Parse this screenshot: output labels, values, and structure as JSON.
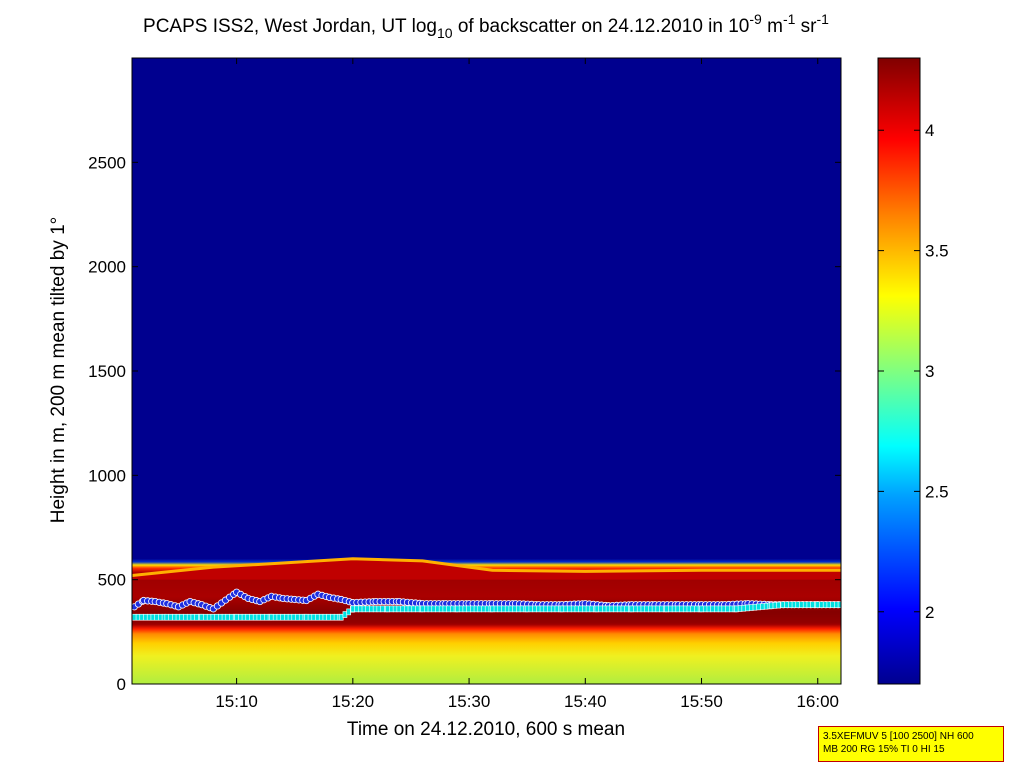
{
  "chart_data": {
    "type": "heatmap",
    "title_parts": {
      "prefix": "PCAPS ISS2, West Jordan, UT log",
      "sub": "10",
      "mid": " of backscatter on 24.12.2010 in 10",
      "exp1": "-9",
      "unit1": " m",
      "exp2": "-1",
      "unit2": " sr",
      "exp3": "-1"
    },
    "xlabel": "Time on 24.12.2010, 600 s mean",
    "ylabel": "Height in m, 200 m mean tilted by 1°",
    "x_ticks": [
      "15:10",
      "15:20",
      "15:30",
      "15:40",
      "15:50",
      "16:00"
    ],
    "x_tick_minutes": [
      10,
      20,
      30,
      40,
      50,
      60
    ],
    "xlim_minutes": [
      1,
      62
    ],
    "y_ticks": [
      "0",
      "500",
      "1000",
      "1500",
      "2000",
      "2500"
    ],
    "y_tick_values": [
      0,
      500,
      1000,
      1500,
      2000,
      2500
    ],
    "ylim": [
      0,
      3000
    ],
    "colorbar": {
      "ticks": [
        "2",
        "2.5",
        "3",
        "3.5",
        "4"
      ],
      "tick_values": [
        2,
        2.5,
        3,
        3.5,
        4
      ],
      "range": [
        1.7,
        4.3
      ]
    },
    "grid": false,
    "layers_m": {
      "blue_above": 560,
      "dark_red_top": 500,
      "dark_red_bottom": 290,
      "yellow_below": 250
    },
    "series": [
      {
        "marker_color": "#1e2ee0",
        "x_minutes": [
          1.2,
          2,
          3,
          4,
          5,
          6,
          7,
          8,
          10,
          11,
          12,
          13,
          14,
          15,
          16,
          17,
          18,
          19,
          20,
          22,
          24,
          26,
          28,
          30,
          32,
          34,
          36,
          38,
          40,
          42,
          44,
          46,
          48,
          50,
          52,
          54,
          56,
          58,
          60,
          62
        ],
        "y_m": [
          370,
          400,
          395,
          385,
          370,
          395,
          380,
          360,
          440,
          410,
          395,
          420,
          410,
          405,
          400,
          430,
          415,
          405,
          390,
          395,
          395,
          385,
          385,
          385,
          385,
          385,
          380,
          380,
          385,
          375,
          380,
          380,
          380,
          380,
          380,
          385,
          380,
          380,
          380,
          380
        ]
      },
      {
        "marker_color": "#00e0e0",
        "x_minutes": [
          1.2,
          4,
          7,
          10,
          13,
          16,
          19,
          20,
          23,
          26,
          29,
          32,
          35,
          38,
          41,
          44,
          47,
          50,
          53,
          56,
          57,
          60,
          62
        ],
        "y_m": [
          320,
          320,
          320,
          320,
          320,
          320,
          320,
          360,
          360,
          360,
          360,
          360,
          360,
          360,
          360,
          360,
          360,
          360,
          360,
          375,
          380,
          380,
          380
        ]
      }
    ]
  },
  "info_box": {
    "line1": "3.5XEFMUV 5 [100 2500] NH 600",
    "line2": "MB 200 RG 15% TI 0 HI 15"
  },
  "colors": {
    "background_low": "#00008f",
    "layer_dark_red": "#800000",
    "info_box_bg": "#ffff00",
    "info_box_border": "#c00000"
  }
}
